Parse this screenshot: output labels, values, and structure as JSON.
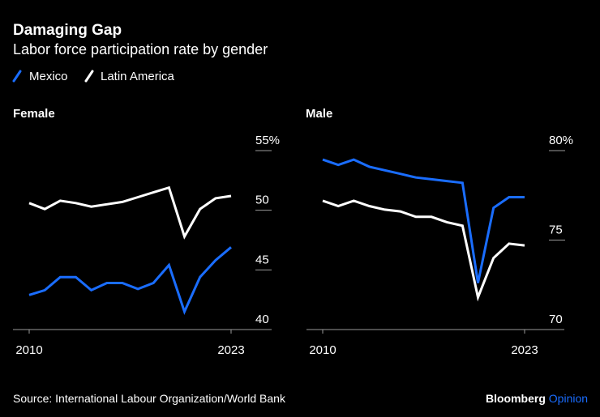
{
  "title": "Damaging Gap",
  "subtitle": "Labor force participation rate by gender",
  "legend": [
    {
      "label": "Mexico",
      "color": "#1a6dff"
    },
    {
      "label": "Latin America",
      "color": "#ffffff"
    }
  ],
  "source": "Source: International Labour Organization/World Bank",
  "logo": {
    "brand": "Bloomberg",
    "product": "Opinion",
    "brand_color": "#ffffff",
    "product_color": "#1a6dff"
  },
  "chart_data": [
    {
      "type": "line",
      "title": "Female",
      "x": [
        2010,
        2011,
        2012,
        2013,
        2014,
        2015,
        2016,
        2017,
        2018,
        2019,
        2020,
        2021,
        2022,
        2023
      ],
      "xtick_labels": [
        "2010",
        "2023"
      ],
      "ylim": [
        40,
        55
      ],
      "yticks": [
        40,
        45,
        50,
        55
      ],
      "ytick_labels": [
        "40",
        "45",
        "50",
        "55%"
      ],
      "series": [
        {
          "name": "Mexico",
          "color": "#1a6dff",
          "values": [
            42.9,
            43.3,
            44.4,
            44.4,
            43.3,
            43.9,
            43.9,
            43.4,
            43.9,
            45.4,
            41.5,
            44.4,
            45.8,
            46.9
          ]
        },
        {
          "name": "Latin America",
          "color": "#ffffff",
          "values": [
            50.6,
            50.1,
            50.8,
            50.6,
            50.3,
            50.5,
            50.7,
            51.1,
            51.5,
            51.9,
            47.8,
            50.1,
            51.0,
            51.2
          ]
        }
      ]
    },
    {
      "type": "line",
      "title": "Male",
      "x": [
        2010,
        2011,
        2012,
        2013,
        2014,
        2015,
        2016,
        2017,
        2018,
        2019,
        2020,
        2021,
        2022,
        2023
      ],
      "xtick_labels": [
        "2010",
        "2023"
      ],
      "ylim": [
        70,
        80
      ],
      "yticks": [
        70,
        75,
        80
      ],
      "ytick_labels": [
        "70",
        "75",
        "80%"
      ],
      "series": [
        {
          "name": "Mexico",
          "color": "#1a6dff",
          "values": [
            79.5,
            79.2,
            79.5,
            79.1,
            78.9,
            78.7,
            78.5,
            78.4,
            78.3,
            78.2,
            72.6,
            76.8,
            77.4,
            77.4
          ]
        },
        {
          "name": "Latin America",
          "color": "#ffffff",
          "values": [
            77.2,
            76.9,
            77.2,
            76.9,
            76.7,
            76.6,
            76.3,
            76.3,
            76.0,
            75.8,
            71.8,
            74.0,
            74.8,
            74.7
          ]
        }
      ]
    }
  ]
}
